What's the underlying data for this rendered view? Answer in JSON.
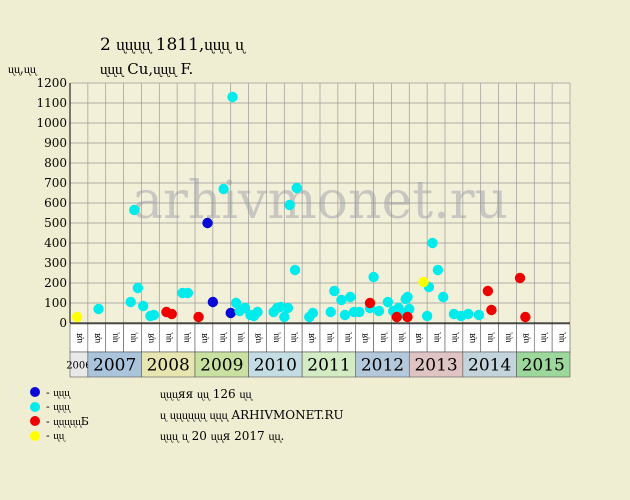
{
  "title_line1": "2 ᶙᶙᶙᶙ 1811,ᶙᶙᶙ ᶙ",
  "title_line2": "ᶙᶙᶙ Cu,ᶙᶙᶙ F.",
  "y_unit": "ᶙᶙ,ᶙᶙ",
  "watermark": "arhivmonet.ru",
  "colors": {
    "background": "#f0eed2",
    "grid": "#9a9a9a",
    "blue": "#0a0ad8",
    "cyan": "#00ecec",
    "red": "#ee0000",
    "yellow": "#ffff00"
  },
  "legend": [
    {
      "color": "#0a0ad8",
      "label": "- ᶙᶙᶙ"
    },
    {
      "color": "#00ecec",
      "label": "- ᶙᶙᶙ"
    },
    {
      "color": "#ee0000",
      "label": "- ᶙᶙᶙᶙᶙБ"
    },
    {
      "color": "#ffff00",
      "label": "- ᶙᶙ"
    }
  ],
  "notes": [
    "ᶙᶙᶙяя ᶙᶙ 126 ᶙᶙ",
    "ᶙ ᶙᶙᶙᶙᶙᶙ ᶙᶙᶙ ARHIVMONET.RU",
    "ᶙᶙᶙ ᶙ 20 ᶙᶙя 2017 ᶙᶙ."
  ],
  "chart_data": {
    "type": "scatter",
    "title": "2 ᶙᶙᶙᶙ 1811,ᶙᶙᶙ ᶙ / ᶙᶙᶙ Cu,ᶙᶙᶙ F.",
    "ylabel": "ᶙᶙ,ᶙᶙ",
    "ylim": [
      0,
      1200
    ],
    "yticks": [
      0,
      100,
      200,
      300,
      400,
      500,
      600,
      700,
      800,
      900,
      1000,
      1100,
      1200
    ],
    "grid": true,
    "slots_per_year": 3,
    "slot_labels": [
      "ᶙя",
      "ᶙᶙ",
      "ᶙᶙ"
    ],
    "years": [
      {
        "label": "2006",
        "slots": 1,
        "color": "#e8e8e8"
      },
      {
        "label": "2007",
        "slots": 3,
        "color": "#a9c4db"
      },
      {
        "label": "2008",
        "slots": 3,
        "color": "#e8e6b0"
      },
      {
        "label": "2009",
        "slots": 3,
        "color": "#c8e0a0"
      },
      {
        "label": "2010",
        "slots": 3,
        "color": "#c4dce4"
      },
      {
        "label": "2011",
        "slots": 3,
        "color": "#d4ecc4"
      },
      {
        "label": "2012",
        "slots": 3,
        "color": "#b4c8dc"
      },
      {
        "label": "2013",
        "slots": 3,
        "color": "#e0c4c4"
      },
      {
        "label": "2014",
        "slots": 3,
        "color": "#c4d4dc"
      },
      {
        "label": "2015",
        "slots": 3,
        "color": "#9cd89c"
      }
    ],
    "series": [
      {
        "color": "#0a0ad8",
        "points": [
          [
            7.7,
            500
          ],
          [
            8.0,
            105
          ],
          [
            9.0,
            50
          ]
        ]
      },
      {
        "color": "#00ecec",
        "points": [
          [
            1.6,
            70
          ],
          [
            3.4,
            105
          ],
          [
            3.6,
            565
          ],
          [
            3.8,
            175
          ],
          [
            4.1,
            85
          ],
          [
            4.5,
            35
          ],
          [
            4.7,
            40
          ],
          [
            6.3,
            150
          ],
          [
            6.6,
            150
          ],
          [
            8.6,
            670
          ],
          [
            9.1,
            1130
          ],
          [
            9.3,
            100
          ],
          [
            9.5,
            60
          ],
          [
            9.8,
            75
          ],
          [
            10.1,
            40
          ],
          [
            10.3,
            35
          ],
          [
            10.5,
            55
          ],
          [
            11.4,
            55
          ],
          [
            11.6,
            75
          ],
          [
            11.8,
            80
          ],
          [
            12.0,
            30
          ],
          [
            12.3,
            590
          ],
          [
            12.6,
            265
          ],
          [
            12.7,
            675
          ],
          [
            12.2,
            75
          ],
          [
            13.4,
            30
          ],
          [
            13.6,
            50
          ],
          [
            14.6,
            55
          ],
          [
            14.8,
            160
          ],
          [
            15.2,
            115
          ],
          [
            15.4,
            40
          ],
          [
            15.7,
            130
          ],
          [
            15.9,
            55
          ],
          [
            16.2,
            55
          ],
          [
            16.8,
            75
          ],
          [
            17.0,
            230
          ],
          [
            17.3,
            60
          ],
          [
            17.8,
            105
          ],
          [
            18.1,
            60
          ],
          [
            18.4,
            75
          ],
          [
            18.6,
            50
          ],
          [
            18.8,
            120
          ],
          [
            18.9,
            130
          ],
          [
            19.0,
            70
          ],
          [
            20.1,
            180
          ],
          [
            20.3,
            400
          ],
          [
            20.6,
            265
          ],
          [
            20.9,
            130
          ],
          [
            21.5,
            45
          ],
          [
            21.9,
            35
          ],
          [
            22.3,
            45
          ],
          [
            22.9,
            40
          ],
          [
            20.0,
            35
          ]
        ]
      },
      {
        "color": "#ee0000",
        "points": [
          [
            5.4,
            55
          ],
          [
            5.7,
            45
          ],
          [
            7.2,
            30
          ],
          [
            16.8,
            100
          ],
          [
            18.3,
            30
          ],
          [
            18.9,
            30
          ],
          [
            23.4,
            160
          ],
          [
            23.6,
            65
          ],
          [
            25.2,
            225
          ],
          [
            25.5,
            30
          ],
          [
            31.9,
            55
          ],
          [
            32.1,
            30
          ],
          [
            33.1,
            50
          ],
          [
            34.2,
            125
          ],
          [
            34.9,
            155
          ],
          [
            35.0,
            30
          ],
          [
            35.3,
            55
          ],
          [
            35.6,
            40
          ],
          [
            35.9,
            45
          ],
          [
            36.6,
            115
          ],
          [
            36.7,
            55
          ]
        ]
      },
      {
        "color": "#ffff00",
        "points": [
          [
            0.4,
            30
          ],
          [
            19.8,
            205
          ]
        ]
      }
    ]
  }
}
